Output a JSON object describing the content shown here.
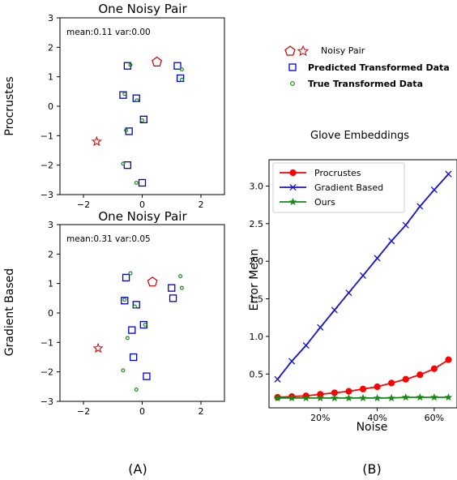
{
  "figure": {
    "panel_labels": [
      "(A)",
      "(B)"
    ]
  },
  "legend_top": {
    "items": [
      {
        "label": "Noisy Pair",
        "marker": "pentagon-star"
      },
      {
        "label": "Predicted Transformed Data",
        "marker": "square"
      },
      {
        "label": "True Transformed Data",
        "marker": "dot"
      }
    ]
  },
  "colors": {
    "red": "#cc0000",
    "blue": "#0000cc",
    "green": "#1a8a1a",
    "procrustes_line": "#ff0000",
    "gradient_line": "#1515d0",
    "ours_line": "#138a13"
  },
  "chart_data": [
    {
      "type": "scatter",
      "title": "One Noisy Pair",
      "ylabel": "Procrustes",
      "annotation": "mean:0.11 var:0.00",
      "xlim": [
        -2.8,
        2.8
      ],
      "ylim": [
        -3,
        3
      ],
      "xticks": [
        -2,
        0,
        2
      ],
      "yticks": [
        -3,
        -2,
        -1,
        0,
        1,
        2,
        3
      ],
      "noisy_pair": {
        "pentagon": [
          0.5,
          1.5
        ],
        "star": [
          -1.55,
          -1.2
        ]
      },
      "predicted": [
        [
          -0.5,
          1.37
        ],
        [
          1.2,
          1.37
        ],
        [
          1.3,
          0.95
        ],
        [
          -0.65,
          0.38
        ],
        [
          -0.2,
          0.27
        ],
        [
          0.05,
          -0.45
        ],
        [
          -0.45,
          -0.85
        ],
        [
          -0.5,
          -2.0
        ],
        [
          0.0,
          -2.6
        ]
      ],
      "true": [
        [
          -0.4,
          1.4
        ],
        [
          1.35,
          1.25
        ],
        [
          1.35,
          0.9
        ],
        [
          -0.6,
          0.42
        ],
        [
          -0.18,
          0.2
        ],
        [
          0.0,
          -0.48
        ],
        [
          -0.55,
          -0.82
        ],
        [
          -0.65,
          -1.95
        ],
        [
          -0.2,
          -2.6
        ]
      ]
    },
    {
      "type": "scatter",
      "title": "One Noisy Pair",
      "ylabel": "Gradient Based",
      "annotation": "mean:0.31 var:0.05",
      "xlim": [
        -2.8,
        2.8
      ],
      "ylim": [
        -3,
        3
      ],
      "xticks": [
        -2,
        0,
        2
      ],
      "yticks": [
        -3,
        -2,
        -1,
        0,
        1,
        2,
        3
      ],
      "noisy_pair": {
        "pentagon": [
          0.35,
          1.05
        ],
        "star": [
          -1.5,
          -1.2
        ]
      },
      "predicted": [
        [
          -0.55,
          1.2
        ],
        [
          1.0,
          0.85
        ],
        [
          1.05,
          0.5
        ],
        [
          -0.6,
          0.42
        ],
        [
          -0.2,
          0.28
        ],
        [
          -0.35,
          -0.58
        ],
        [
          0.05,
          -0.4
        ],
        [
          -0.3,
          -1.5
        ],
        [
          0.15,
          -2.15
        ]
      ],
      "true": [
        [
          -0.4,
          1.35
        ],
        [
          1.3,
          1.25
        ],
        [
          1.35,
          0.85
        ],
        [
          -0.6,
          0.45
        ],
        [
          -0.25,
          0.22
        ],
        [
          -0.5,
          -0.85
        ],
        [
          0.1,
          -0.4
        ],
        [
          -0.65,
          -1.95
        ],
        [
          -0.2,
          -2.6
        ]
      ]
    },
    {
      "type": "line",
      "title": "Glove Embeddings",
      "xlabel": "Noise",
      "ylabel": "Error Mean",
      "xlim": [
        0.02,
        0.68
      ],
      "ylim": [
        0.05,
        3.35
      ],
      "xticks": [
        0.2,
        0.4,
        0.6
      ],
      "xtick_labels": [
        "20%",
        "40%",
        "60%"
      ],
      "yticks": [
        0.5,
        1.0,
        1.5,
        2.0,
        2.5,
        3.0
      ],
      "ytick_labels": [
        "0.5",
        "1.0",
        "1.5",
        "2.0",
        "2.5",
        "3.0"
      ],
      "legend_position": "top-left",
      "x": [
        0.05,
        0.1,
        0.15,
        0.2,
        0.25,
        0.3,
        0.35,
        0.4,
        0.45,
        0.5,
        0.55,
        0.6,
        0.65
      ],
      "series": [
        {
          "name": "Procrustes",
          "marker": "circle",
          "values": [
            0.19,
            0.2,
            0.21,
            0.23,
            0.25,
            0.27,
            0.3,
            0.33,
            0.38,
            0.43,
            0.49,
            0.57,
            0.69
          ]
        },
        {
          "name": "Gradient Based",
          "marker": "x",
          "values": [
            0.43,
            0.67,
            0.88,
            1.12,
            1.35,
            1.58,
            1.81,
            2.04,
            2.27,
            2.48,
            2.73,
            2.95,
            3.16
          ]
        },
        {
          "name": "Ours",
          "marker": "star",
          "values": [
            0.18,
            0.18,
            0.18,
            0.18,
            0.18,
            0.18,
            0.18,
            0.18,
            0.18,
            0.19,
            0.19,
            0.19,
            0.19
          ]
        }
      ]
    }
  ]
}
